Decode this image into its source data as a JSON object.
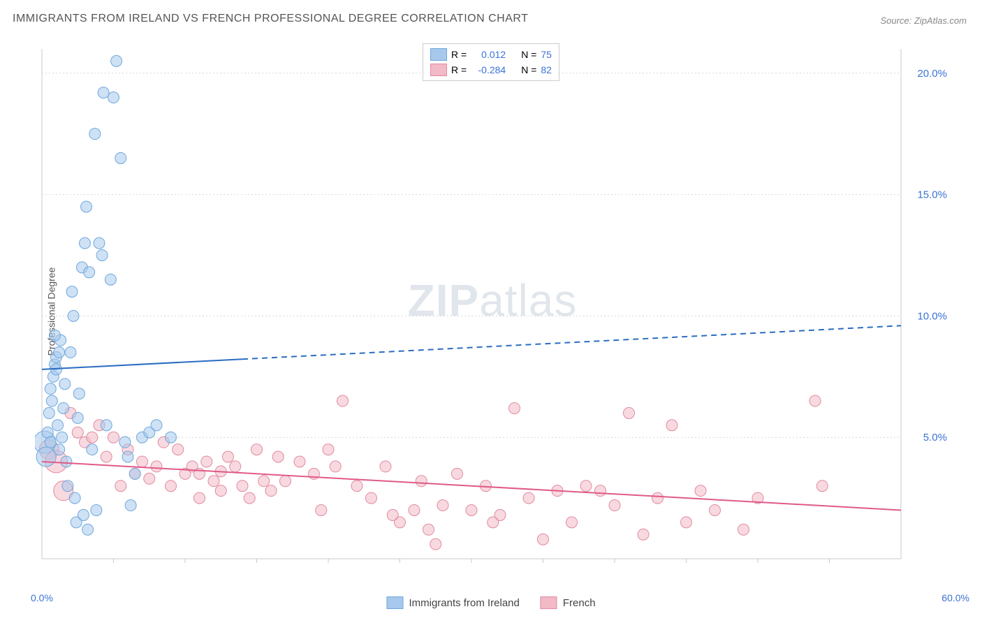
{
  "title": "IMMIGRANTS FROM IRELAND VS FRENCH PROFESSIONAL DEGREE CORRELATION CHART",
  "source_prefix": "Source: ",
  "source_name": "ZipAtlas.com",
  "ylabel": "Professional Degree",
  "watermark_bold": "ZIP",
  "watermark_rest": "atlas",
  "colors": {
    "series1_fill": "#a6c8ec",
    "series1_stroke": "#6fa8dc",
    "series1_line": "#2a6cc2",
    "series2_fill": "#f2b9c6",
    "series2_stroke": "#e18aa0",
    "series2_line": "#e05a88",
    "grid": "#d7d7d7",
    "axis": "#c8c8c8",
    "tick_label": "#3b72d6",
    "text": "#555555",
    "legend_value": "#3b72d6"
  },
  "legend_top": [
    {
      "r_label": "R =",
      "r_value": "0.012",
      "n_label": "N =",
      "n_value": "75",
      "swatch": "series1"
    },
    {
      "r_label": "R =",
      "r_value": "-0.284",
      "n_label": "N =",
      "n_value": "82",
      "swatch": "series2"
    }
  ],
  "legend_bottom": [
    {
      "label": "Immigrants from Ireland",
      "swatch": "series1"
    },
    {
      "label": "French",
      "swatch": "series2"
    }
  ],
  "chart": {
    "type": "scatter",
    "xlim": [
      0,
      60
    ],
    "ylim": [
      0,
      21
    ],
    "y_gridlines": [
      5,
      10,
      15,
      20
    ],
    "y_tick_labels": [
      "5.0%",
      "10.0%",
      "15.0%",
      "20.0%"
    ],
    "x_tick_labels": {
      "min": "0.0%",
      "max": "60.0%"
    },
    "x_minor_ticks": [
      5,
      10,
      15,
      20,
      25,
      30,
      35,
      40,
      45,
      50,
      55
    ],
    "marker_radius": 8,
    "marker_opacity": 0.55,
    "line_width": 2,
    "trend_series1": {
      "y_at_x0": 7.8,
      "y_at_x60": 9.6,
      "solid_until_x": 14
    },
    "trend_series2": {
      "y_at_x0": 4.0,
      "y_at_x60": 2.0
    },
    "series1_points": [
      {
        "x": 0.2,
        "y": 4.8,
        "r": 16
      },
      {
        "x": 0.3,
        "y": 4.2,
        "r": 14
      },
      {
        "x": 0.5,
        "y": 6.0
      },
      {
        "x": 0.6,
        "y": 7.0
      },
      {
        "x": 0.7,
        "y": 6.5
      },
      {
        "x": 0.8,
        "y": 7.5
      },
      {
        "x": 0.9,
        "y": 8.0
      },
      {
        "x": 1.0,
        "y": 8.3
      },
      {
        "x": 1.1,
        "y": 5.5
      },
      {
        "x": 1.2,
        "y": 4.5
      },
      {
        "x": 1.3,
        "y": 9.0
      },
      {
        "x": 1.4,
        "y": 5.0
      },
      {
        "x": 1.5,
        "y": 6.2
      },
      {
        "x": 1.6,
        "y": 7.2
      },
      {
        "x": 1.7,
        "y": 4.0
      },
      {
        "x": 1.8,
        "y": 3.0
      },
      {
        "x": 2.0,
        "y": 8.5
      },
      {
        "x": 2.1,
        "y": 11.0
      },
      {
        "x": 2.2,
        "y": 10.0
      },
      {
        "x": 2.3,
        "y": 2.5
      },
      {
        "x": 2.4,
        "y": 1.5
      },
      {
        "x": 2.5,
        "y": 5.8
      },
      {
        "x": 2.6,
        "y": 6.8
      },
      {
        "x": 2.8,
        "y": 12.0
      },
      {
        "x": 3.0,
        "y": 13.0
      },
      {
        "x": 3.1,
        "y": 14.5
      },
      {
        "x": 3.3,
        "y": 11.8
      },
      {
        "x": 3.5,
        "y": 4.5
      },
      {
        "x": 3.7,
        "y": 17.5
      },
      {
        "x": 3.8,
        "y": 2.0
      },
      {
        "x": 4.0,
        "y": 13.0
      },
      {
        "x": 4.2,
        "y": 12.5
      },
      {
        "x": 4.3,
        "y": 19.2
      },
      {
        "x": 4.5,
        "y": 5.5
      },
      {
        "x": 4.8,
        "y": 11.5
      },
      {
        "x": 5.0,
        "y": 19.0
      },
      {
        "x": 5.2,
        "y": 20.5
      },
      {
        "x": 5.5,
        "y": 16.5
      },
      {
        "x": 5.8,
        "y": 4.8
      },
      {
        "x": 6.0,
        "y": 4.2
      },
      {
        "x": 6.2,
        "y": 2.2
      },
      {
        "x": 6.5,
        "y": 3.5
      },
      {
        "x": 7.0,
        "y": 5.0
      },
      {
        "x": 7.5,
        "y": 5.2
      },
      {
        "x": 8.0,
        "y": 5.5
      },
      {
        "x": 9.0,
        "y": 5.0
      },
      {
        "x": 3.2,
        "y": 1.2
      },
      {
        "x": 2.9,
        "y": 1.8
      },
      {
        "x": 1.0,
        "y": 7.8
      },
      {
        "x": 1.2,
        "y": 8.5
      },
      {
        "x": 0.4,
        "y": 5.2
      },
      {
        "x": 0.6,
        "y": 4.8
      },
      {
        "x": 0.9,
        "y": 9.2
      }
    ],
    "series2_points": [
      {
        "x": 0.5,
        "y": 4.5,
        "r": 14
      },
      {
        "x": 1.0,
        "y": 4.0,
        "r": 16
      },
      {
        "x": 1.5,
        "y": 2.8,
        "r": 14
      },
      {
        "x": 2.0,
        "y": 6.0
      },
      {
        "x": 2.5,
        "y": 5.2
      },
      {
        "x": 3.0,
        "y": 4.8
      },
      {
        "x": 3.5,
        "y": 5.0
      },
      {
        "x": 4.0,
        "y": 5.5
      },
      {
        "x": 4.5,
        "y": 4.2
      },
      {
        "x": 5.0,
        "y": 5.0
      },
      {
        "x": 5.5,
        "y": 3.0
      },
      {
        "x": 6.0,
        "y": 4.5
      },
      {
        "x": 6.5,
        "y": 3.5
      },
      {
        "x": 7.0,
        "y": 4.0
      },
      {
        "x": 7.5,
        "y": 3.3
      },
      {
        "x": 8.0,
        "y": 3.8
      },
      {
        "x": 8.5,
        "y": 4.8
      },
      {
        "x": 9.0,
        "y": 3.0
      },
      {
        "x": 9.5,
        "y": 4.5
      },
      {
        "x": 10.0,
        "y": 3.5
      },
      {
        "x": 10.5,
        "y": 3.8
      },
      {
        "x": 11.0,
        "y": 2.5
      },
      {
        "x": 11.5,
        "y": 4.0
      },
      {
        "x": 12.0,
        "y": 3.2
      },
      {
        "x": 12.5,
        "y": 3.6
      },
      {
        "x": 13.0,
        "y": 4.2
      },
      {
        "x": 14.0,
        "y": 3.0
      },
      {
        "x": 15.0,
        "y": 4.5
      },
      {
        "x": 16.0,
        "y": 2.8
      },
      {
        "x": 17.0,
        "y": 3.2
      },
      {
        "x": 18.0,
        "y": 4.0
      },
      {
        "x": 19.0,
        "y": 3.5
      },
      {
        "x": 20.0,
        "y": 4.5
      },
      {
        "x": 21.0,
        "y": 6.5
      },
      {
        "x": 22.0,
        "y": 3.0
      },
      {
        "x": 23.0,
        "y": 2.5
      },
      {
        "x": 24.0,
        "y": 3.8
      },
      {
        "x": 25.0,
        "y": 1.5
      },
      {
        "x": 26.0,
        "y": 2.0
      },
      {
        "x": 27.0,
        "y": 1.2
      },
      {
        "x": 28.0,
        "y": 2.2
      },
      {
        "x": 29.0,
        "y": 3.5
      },
      {
        "x": 30.0,
        "y": 2.0
      },
      {
        "x": 31.0,
        "y": 3.0
      },
      {
        "x": 32.0,
        "y": 1.8
      },
      {
        "x": 33.0,
        "y": 6.2
      },
      {
        "x": 34.0,
        "y": 2.5
      },
      {
        "x": 35.0,
        "y": 0.8
      },
      {
        "x": 36.0,
        "y": 2.8
      },
      {
        "x": 37.0,
        "y": 1.5
      },
      {
        "x": 38.0,
        "y": 3.0
      },
      {
        "x": 40.0,
        "y": 2.2
      },
      {
        "x": 41.0,
        "y": 6.0
      },
      {
        "x": 42.0,
        "y": 1.0
      },
      {
        "x": 43.0,
        "y": 2.5
      },
      {
        "x": 44.0,
        "y": 5.5
      },
      {
        "x": 45.0,
        "y": 1.5
      },
      {
        "x": 47.0,
        "y": 2.0
      },
      {
        "x": 49.0,
        "y": 1.2
      },
      {
        "x": 50.0,
        "y": 2.5
      },
      {
        "x": 54.0,
        "y": 6.5
      },
      {
        "x": 54.5,
        "y": 3.0
      },
      {
        "x": 11.0,
        "y": 3.5
      },
      {
        "x": 12.5,
        "y": 2.8
      },
      {
        "x": 13.5,
        "y": 3.8
      },
      {
        "x": 14.5,
        "y": 2.5
      },
      {
        "x": 15.5,
        "y": 3.2
      },
      {
        "x": 16.5,
        "y": 4.2
      },
      {
        "x": 19.5,
        "y": 2.0
      },
      {
        "x": 20.5,
        "y": 3.8
      },
      {
        "x": 24.5,
        "y": 1.8
      },
      {
        "x": 26.5,
        "y": 3.2
      },
      {
        "x": 27.5,
        "y": 0.6
      },
      {
        "x": 31.5,
        "y": 1.5
      },
      {
        "x": 39.0,
        "y": 2.8
      },
      {
        "x": 46.0,
        "y": 2.8
      }
    ]
  }
}
